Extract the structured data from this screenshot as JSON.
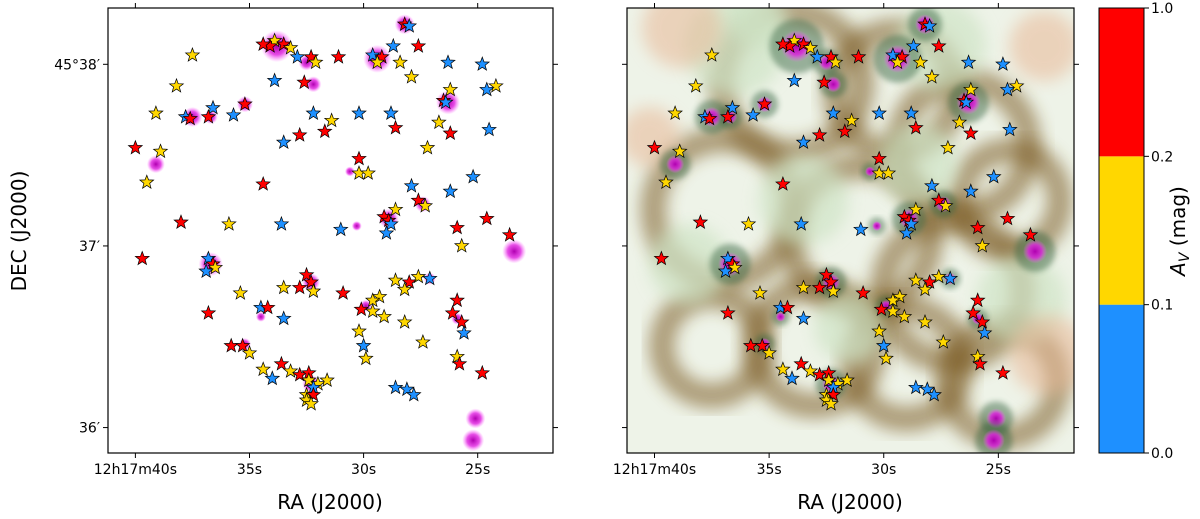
{
  "chart_data": {
    "type": "scatter",
    "description_panels": [
      "left",
      "right"
    ],
    "ylabel": "DEC (J2000)",
    "xlabel": "RA (J2000)",
    "x_ticks": [
      {
        "ra_sec": 40,
        "label": "12h17m40s"
      },
      {
        "ra_sec": 35,
        "label": "35s"
      },
      {
        "ra_sec": 30,
        "label": "30s"
      },
      {
        "ra_sec": 25,
        "label": "25s"
      }
    ],
    "y_ticks": [
      {
        "dec_arcmin": 38,
        "label": "45°38′"
      },
      {
        "dec_arcmin": 37,
        "label": "37′"
      },
      {
        "dec_arcmin": 36,
        "label": "36′"
      }
    ],
    "xlim_ra_sec": [
      41.2,
      21.7
    ],
    "ylim_dec_arcmin": [
      35.86,
      38.31
    ],
    "colorbar": {
      "label": "A_V (mag)",
      "bins": [
        {
          "low": 0.0,
          "high": 0.1,
          "color": "#1e90ff",
          "name": "blue"
        },
        {
          "low": 0.1,
          "high": 0.2,
          "color": "#ffd700",
          "name": "yellow"
        },
        {
          "low": 0.2,
          "high": 1.0,
          "color": "#ff0000",
          "name": "red"
        }
      ],
      "tick_labels": [
        "0.0",
        "0.1",
        "0.2",
        "1.0"
      ]
    },
    "sources": [
      {
        "ra": 28.2,
        "dec": 38.22,
        "c": "red"
      },
      {
        "ra": 28.0,
        "dec": 38.21,
        "c": "blue"
      },
      {
        "ra": 33.9,
        "dec": 38.13,
        "c": "yellow"
      },
      {
        "ra": 34.1,
        "dec": 38.1,
        "c": "red"
      },
      {
        "ra": 33.5,
        "dec": 38.11,
        "c": "red"
      },
      {
        "ra": 34.4,
        "dec": 38.11,
        "c": "red"
      },
      {
        "ra": 33.2,
        "dec": 38.09,
        "c": "yellow"
      },
      {
        "ra": 27.6,
        "dec": 38.1,
        "c": "red"
      },
      {
        "ra": 28.7,
        "dec": 38.1,
        "c": "blue"
      },
      {
        "ra": 37.5,
        "dec": 38.05,
        "c": "yellow"
      },
      {
        "ra": 32.9,
        "dec": 38.04,
        "c": "blue"
      },
      {
        "ra": 32.3,
        "dec": 38.04,
        "c": "red"
      },
      {
        "ra": 31.1,
        "dec": 38.04,
        "c": "red"
      },
      {
        "ra": 29.6,
        "dec": 38.05,
        "c": "blue"
      },
      {
        "ra": 29.2,
        "dec": 38.04,
        "c": "red"
      },
      {
        "ra": 29.4,
        "dec": 38.01,
        "c": "yellow"
      },
      {
        "ra": 32.1,
        "dec": 38.01,
        "c": "yellow"
      },
      {
        "ra": 28.4,
        "dec": 38.01,
        "c": "yellow"
      },
      {
        "ra": 26.3,
        "dec": 38.01,
        "c": "blue"
      },
      {
        "ra": 24.8,
        "dec": 38.0,
        "c": "blue"
      },
      {
        "ra": 33.9,
        "dec": 37.91,
        "c": "blue"
      },
      {
        "ra": 32.6,
        "dec": 37.9,
        "c": "red"
      },
      {
        "ra": 27.9,
        "dec": 37.93,
        "c": "yellow"
      },
      {
        "ra": 38.2,
        "dec": 37.88,
        "c": "yellow"
      },
      {
        "ra": 24.2,
        "dec": 37.88,
        "c": "yellow"
      },
      {
        "ra": 24.6,
        "dec": 37.86,
        "c": "blue"
      },
      {
        "ra": 26.2,
        "dec": 37.86,
        "c": "yellow"
      },
      {
        "ra": 26.5,
        "dec": 37.8,
        "c": "red"
      },
      {
        "ra": 26.4,
        "dec": 37.79,
        "c": "blue"
      },
      {
        "ra": 35.2,
        "dec": 37.78,
        "c": "red"
      },
      {
        "ra": 36.6,
        "dec": 37.76,
        "c": "blue"
      },
      {
        "ra": 32.2,
        "dec": 37.73,
        "c": "blue"
      },
      {
        "ra": 30.2,
        "dec": 37.73,
        "c": "blue"
      },
      {
        "ra": 28.8,
        "dec": 37.73,
        "c": "blue"
      },
      {
        "ra": 39.1,
        "dec": 37.73,
        "c": "yellow"
      },
      {
        "ra": 37.8,
        "dec": 37.71,
        "c": "blue"
      },
      {
        "ra": 36.8,
        "dec": 37.71,
        "c": "red"
      },
      {
        "ra": 37.6,
        "dec": 37.7,
        "c": "red"
      },
      {
        "ra": 31.4,
        "dec": 37.69,
        "c": "yellow"
      },
      {
        "ra": 35.7,
        "dec": 37.72,
        "c": "blue"
      },
      {
        "ra": 26.7,
        "dec": 37.68,
        "c": "yellow"
      },
      {
        "ra": 28.6,
        "dec": 37.65,
        "c": "red"
      },
      {
        "ra": 24.5,
        "dec": 37.64,
        "c": "blue"
      },
      {
        "ra": 26.2,
        "dec": 37.62,
        "c": "red"
      },
      {
        "ra": 31.7,
        "dec": 37.63,
        "c": "red"
      },
      {
        "ra": 32.8,
        "dec": 37.61,
        "c": "red"
      },
      {
        "ra": 33.5,
        "dec": 37.57,
        "c": "blue"
      },
      {
        "ra": 40.0,
        "dec": 37.54,
        "c": "red"
      },
      {
        "ra": 38.9,
        "dec": 37.52,
        "c": "yellow"
      },
      {
        "ra": 27.2,
        "dec": 37.54,
        "c": "yellow"
      },
      {
        "ra": 30.2,
        "dec": 37.48,
        "c": "red"
      },
      {
        "ra": 30.2,
        "dec": 37.4,
        "c": "yellow"
      },
      {
        "ra": 29.8,
        "dec": 37.4,
        "c": "yellow"
      },
      {
        "ra": 25.2,
        "dec": 37.38,
        "c": "blue"
      },
      {
        "ra": 39.5,
        "dec": 37.35,
        "c": "yellow"
      },
      {
        "ra": 34.4,
        "dec": 37.34,
        "c": "red"
      },
      {
        "ra": 27.9,
        "dec": 37.33,
        "c": "blue"
      },
      {
        "ra": 26.2,
        "dec": 37.3,
        "c": "blue"
      },
      {
        "ra": 27.6,
        "dec": 37.25,
        "c": "red"
      },
      {
        "ra": 27.3,
        "dec": 37.22,
        "c": "yellow"
      },
      {
        "ra": 28.6,
        "dec": 37.2,
        "c": "yellow"
      },
      {
        "ra": 29.1,
        "dec": 37.16,
        "c": "red"
      },
      {
        "ra": 28.9,
        "dec": 37.14,
        "c": "red"
      },
      {
        "ra": 28.8,
        "dec": 37.12,
        "c": "blue"
      },
      {
        "ra": 24.6,
        "dec": 37.15,
        "c": "red"
      },
      {
        "ra": 38.0,
        "dec": 37.13,
        "c": "red"
      },
      {
        "ra": 35.9,
        "dec": 37.12,
        "c": "yellow"
      },
      {
        "ra": 33.6,
        "dec": 37.12,
        "c": "blue"
      },
      {
        "ra": 31.0,
        "dec": 37.09,
        "c": "blue"
      },
      {
        "ra": 29.0,
        "dec": 37.07,
        "c": "blue"
      },
      {
        "ra": 25.9,
        "dec": 37.1,
        "c": "red"
      },
      {
        "ra": 23.6,
        "dec": 37.06,
        "c": "red"
      },
      {
        "ra": 25.7,
        "dec": 37.0,
        "c": "yellow"
      },
      {
        "ra": 39.7,
        "dec": 36.93,
        "c": "red"
      },
      {
        "ra": 36.8,
        "dec": 36.93,
        "c": "blue"
      },
      {
        "ra": 36.6,
        "dec": 36.9,
        "c": "red"
      },
      {
        "ra": 36.5,
        "dec": 36.88,
        "c": "yellow"
      },
      {
        "ra": 36.9,
        "dec": 36.86,
        "c": "blue"
      },
      {
        "ra": 32.5,
        "dec": 36.84,
        "c": "red"
      },
      {
        "ra": 32.3,
        "dec": 36.8,
        "c": "red"
      },
      {
        "ra": 27.6,
        "dec": 36.83,
        "c": "yellow"
      },
      {
        "ra": 27.1,
        "dec": 36.82,
        "c": "blue"
      },
      {
        "ra": 28.6,
        "dec": 36.81,
        "c": "yellow"
      },
      {
        "ra": 28.0,
        "dec": 36.8,
        "c": "red"
      },
      {
        "ra": 32.8,
        "dec": 36.77,
        "c": "red"
      },
      {
        "ra": 33.5,
        "dec": 36.77,
        "c": "yellow"
      },
      {
        "ra": 32.2,
        "dec": 36.75,
        "c": "yellow"
      },
      {
        "ra": 35.4,
        "dec": 36.74,
        "c": "yellow"
      },
      {
        "ra": 30.9,
        "dec": 36.74,
        "c": "red"
      },
      {
        "ra": 28.2,
        "dec": 36.76,
        "c": "yellow"
      },
      {
        "ra": 29.3,
        "dec": 36.72,
        "c": "yellow"
      },
      {
        "ra": 29.6,
        "dec": 36.7,
        "c": "yellow"
      },
      {
        "ra": 25.9,
        "dec": 36.7,
        "c": "red"
      },
      {
        "ra": 34.5,
        "dec": 36.66,
        "c": "blue"
      },
      {
        "ra": 34.2,
        "dec": 36.66,
        "c": "red"
      },
      {
        "ra": 30.1,
        "dec": 36.65,
        "c": "red"
      },
      {
        "ra": 29.6,
        "dec": 36.64,
        "c": "yellow"
      },
      {
        "ra": 36.8,
        "dec": 36.63,
        "c": "red"
      },
      {
        "ra": 33.5,
        "dec": 36.6,
        "c": "blue"
      },
      {
        "ra": 29.1,
        "dec": 36.61,
        "c": "yellow"
      },
      {
        "ra": 26.1,
        "dec": 36.63,
        "c": "red"
      },
      {
        "ra": 28.2,
        "dec": 36.58,
        "c": "yellow"
      },
      {
        "ra": 25.7,
        "dec": 36.58,
        "c": "red"
      },
      {
        "ra": 30.2,
        "dec": 36.53,
        "c": "yellow"
      },
      {
        "ra": 25.6,
        "dec": 36.52,
        "c": "blue"
      },
      {
        "ra": 27.4,
        "dec": 36.47,
        "c": "yellow"
      },
      {
        "ra": 35.8,
        "dec": 36.45,
        "c": "red"
      },
      {
        "ra": 35.3,
        "dec": 36.45,
        "c": "red"
      },
      {
        "ra": 30.0,
        "dec": 36.45,
        "c": "blue"
      },
      {
        "ra": 35.0,
        "dec": 36.41,
        "c": "yellow"
      },
      {
        "ra": 29.9,
        "dec": 36.38,
        "c": "yellow"
      },
      {
        "ra": 25.9,
        "dec": 36.39,
        "c": "yellow"
      },
      {
        "ra": 33.6,
        "dec": 36.35,
        "c": "red"
      },
      {
        "ra": 25.8,
        "dec": 36.35,
        "c": "red"
      },
      {
        "ra": 34.4,
        "dec": 36.32,
        "c": "yellow"
      },
      {
        "ra": 33.2,
        "dec": 36.31,
        "c": "yellow"
      },
      {
        "ra": 32.8,
        "dec": 36.29,
        "c": "red"
      },
      {
        "ra": 32.4,
        "dec": 36.3,
        "c": "red"
      },
      {
        "ra": 24.8,
        "dec": 36.3,
        "c": "red"
      },
      {
        "ra": 34.0,
        "dec": 36.27,
        "c": "blue"
      },
      {
        "ra": 32.4,
        "dec": 36.26,
        "c": "yellow"
      },
      {
        "ra": 32.0,
        "dec": 36.24,
        "c": "yellow"
      },
      {
        "ra": 32.2,
        "dec": 36.22,
        "c": "blue"
      },
      {
        "ra": 31.6,
        "dec": 36.26,
        "c": "yellow"
      },
      {
        "ra": 32.5,
        "dec": 36.18,
        "c": "yellow"
      },
      {
        "ra": 32.2,
        "dec": 36.18,
        "c": "red"
      },
      {
        "ra": 32.5,
        "dec": 36.15,
        "c": "yellow"
      },
      {
        "ra": 32.3,
        "dec": 36.13,
        "c": "yellow"
      },
      {
        "ra": 28.6,
        "dec": 36.22,
        "c": "blue"
      },
      {
        "ra": 28.1,
        "dec": 36.21,
        "c": "blue"
      },
      {
        "ra": 27.8,
        "dec": 36.18,
        "c": "blue"
      }
    ]
  }
}
